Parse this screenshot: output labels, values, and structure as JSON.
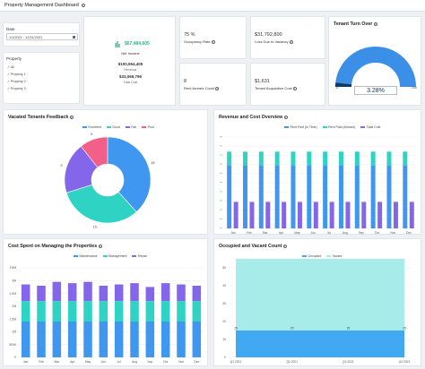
{
  "header": {
    "title": "Property Management Dashboard"
  },
  "filters": {
    "date_label": "Date",
    "date_value": "1/1/2021 - 12/31/2021",
    "property_label": "Property",
    "property_options": [
      "All",
      "Property 1",
      "Property 2",
      "Property 3"
    ]
  },
  "kpi": {
    "net_income_value": "$67,484,605",
    "net_income_label": "Net Income",
    "revenue_value": "$100,554,405",
    "revenue_label": "Revenue",
    "total_cost_value": "$33,069,796",
    "total_cost_label": "Total Cost",
    "occupancy_value": "75 %",
    "occupancy_label": "Occupancy Rate",
    "loss_vacancy_value": "$31,792,800",
    "loss_vacancy_label": "Loss Due to Vacancy",
    "rent_arrears_value": "8",
    "rent_arrears_label": "Rent Arrears Count",
    "tenant_acq_value": "$1,631",
    "tenant_acq_label": "Tenant Acquisition Cost"
  },
  "turnover": {
    "title": "Tenant Turn Over",
    "value_label": "3.28%",
    "value": 3.28,
    "min": 0,
    "max": 100,
    "min_label": "0",
    "max_label": "100",
    "accent": "#3b8fe6"
  },
  "feedback": {
    "title": "Vacated Tenants Feedback",
    "legend": [
      "Excellent",
      "Good",
      "Fair",
      "Poor"
    ],
    "colors": [
      "#3f97f0",
      "#2fd3c4",
      "#8466ea",
      "#f2608a"
    ],
    "chart_data": {
      "type": "pie",
      "labels": [
        "Excellent",
        "Good",
        "Fair",
        "Poor"
      ],
      "values": [
        18,
        15,
        9,
        5
      ],
      "title": "Vacated Tenants Feedback"
    }
  },
  "revenue": {
    "title": "Revenue and Cost Overview",
    "legend": [
      "Rent Paid (In Time)",
      "Rent Paid (Arrears)",
      "Total Cost"
    ],
    "colors": [
      "#3f97f0",
      "#2fd3c4",
      "#8466ea"
    ],
    "chart_data": {
      "type": "bar",
      "categories": [
        "Jan",
        "Feb",
        "Mar",
        "Apr",
        "May",
        "Jun",
        "Jul",
        "Aug",
        "Sep",
        "Oct",
        "Nov",
        "Dec"
      ],
      "series": [
        {
          "name": "Rent Paid (In Time)",
          "values": [
            6.9,
            6.9,
            6.9,
            6.9,
            6.9,
            6.9,
            6.9,
            6.9,
            6.9,
            6.9,
            6.9,
            6.9
          ]
        },
        {
          "name": "Rent Paid (Arrears)",
          "values": [
            1.5,
            1.5,
            1.5,
            1.5,
            1.5,
            1.5,
            1.5,
            1.5,
            1.5,
            1.5,
            1.5,
            1.5
          ]
        },
        {
          "name": "Total Cost",
          "values": [
            2.9,
            2.9,
            2.9,
            2.9,
            2.9,
            2.9,
            2.9,
            2.9,
            2.9,
            2.9,
            2.9,
            2.9
          ]
        }
      ],
      "ylim": [
        0,
        10
      ]
    }
  },
  "costspent": {
    "title": "Cost Spent on Managing the Properties",
    "legend": [
      "Maintenance",
      "Management",
      "Repair"
    ],
    "colors": [
      "#3f97f0",
      "#2fd3c4",
      "#8466ea"
    ],
    "chart_data": {
      "type": "bar",
      "categories": [
        "Jan",
        "Feb",
        "Mar",
        "Apr",
        "May",
        "Jun",
        "Jul",
        "Aug",
        "Sep",
        "Oct",
        "Nov",
        "Dec"
      ],
      "yticks": [
        "0",
        "500K",
        "1M",
        "1.5M",
        "2M",
        "2.5M",
        "3M",
        "3.5M"
      ],
      "series": [
        {
          "name": "Maintenance",
          "values": [
            1.4,
            1.4,
            1.4,
            1.4,
            1.4,
            1.4,
            1.4,
            1.4,
            1.4,
            1.4,
            1.4,
            1.4
          ]
        },
        {
          "name": "Management",
          "values": [
            0.8,
            0.8,
            0.8,
            0.8,
            0.8,
            0.8,
            0.8,
            0.8,
            0.8,
            0.8,
            0.8,
            0.8
          ]
        },
        {
          "name": "Repair",
          "values": [
            0.65,
            0.6,
            0.75,
            0.7,
            0.75,
            0.6,
            0.65,
            0.7,
            0.55,
            0.7,
            0.65,
            0.6
          ]
        }
      ],
      "ylim": [
        0,
        3.5
      ]
    }
  },
  "occupied": {
    "title": "Occupied and Vacant Count",
    "legend": [
      "Occupied",
      "Vacant"
    ],
    "colors": [
      "#41a8f2",
      "#a8ecea"
    ],
    "chart_data": {
      "type": "area",
      "categories": [
        "Q1 2021",
        "Q2 2021",
        "Q3 2021",
        "Q4 2021"
      ],
      "series": [
        {
          "name": "Occupied",
          "values": [
            15,
            15,
            15,
            15
          ]
        },
        {
          "name": "Vacant",
          "values": [
            45,
            45,
            45,
            45
          ]
        }
      ],
      "point_labels_occupied": [
        "15",
        "15",
        "15",
        "15"
      ],
      "point_labels_top": [
        "45",
        "45",
        "45",
        "45"
      ],
      "yticks": [
        "0",
        "10",
        "20",
        "30",
        "40",
        "50"
      ],
      "ylim": [
        0,
        50
      ]
    }
  }
}
